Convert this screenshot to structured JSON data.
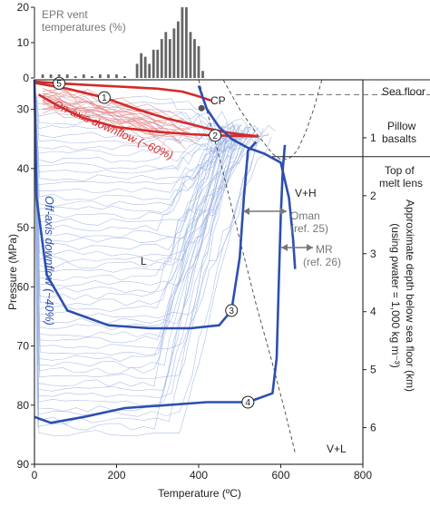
{
  "chart_data": {
    "type": "line",
    "xlabel": "Temperature (ºC)",
    "ylabel": "Pressure (MPa)",
    "right_axis_label_line1": "Approximate depth below sea floor (km)",
    "right_axis_label_line2": "(using ρwater = 1,000 kg m⁻³)",
    "xlim": [
      0,
      800
    ],
    "ylim": [
      90,
      25
    ],
    "xticks": [
      "0",
      "200",
      "400",
      "600",
      "800"
    ],
    "yticks": [
      "30",
      "40",
      "50",
      "60",
      "70",
      "80",
      "90"
    ],
    "right_ticks": [
      "1",
      "2",
      "3",
      "4",
      "5",
      "6"
    ],
    "inset": {
      "label_line1": "EPR vent",
      "label_line2": "temperatures (%)",
      "yticks": [
        "0",
        "10",
        "20"
      ],
      "ylim": [
        0,
        20
      ],
      "bins_x": [
        20,
        40,
        60,
        80,
        100,
        120,
        140,
        160,
        180,
        200,
        220,
        250,
        260,
        270,
        280,
        290,
        300,
        310,
        320,
        330,
        340,
        350,
        360,
        370,
        380,
        390,
        400,
        410
      ],
      "bins_pct": [
        1,
        1,
        1,
        1,
        0.5,
        1,
        0.5,
        1,
        1,
        1,
        0.5,
        4,
        7,
        6,
        4,
        8,
        8,
        11,
        13,
        11,
        14,
        16,
        20,
        20,
        13,
        11,
        9,
        2
      ]
    },
    "labels": {
      "sea_floor": "Sea floor",
      "pillow_line1": "Pillow",
      "pillow_line2": "basalts",
      "melt_line1": "Top of",
      "melt_line2": "melt lens",
      "cp": "CP",
      "vh": "V+H",
      "vl": "V+L",
      "l": "L",
      "oman_line1": "Oman",
      "oman_line2": "(ref. 25)",
      "mr_line1": "MR",
      "mr_line2": "(ref. 26)",
      "on_axis": "On-axis downflow (~60%)",
      "off_axis": "Off-axis downflow (~40%)"
    },
    "horizontal_lines": {
      "sea_floor_p": 25,
      "pillow_basalts_p": 27.5,
      "melt_lens_p": 38
    },
    "critical_point": {
      "x": 407,
      "y": 29.8
    },
    "highlighted_paths": [
      {
        "id": "1",
        "color": "#d42a2a",
        "x": [
          0,
          80,
          170,
          250,
          320,
          380,
          420,
          460,
          500,
          540,
          545
        ],
        "y": [
          25.5,
          26.5,
          28,
          30,
          31.5,
          32.5,
          33.2,
          33.8,
          34.2,
          34.5,
          34.6
        ]
      },
      {
        "id": "2",
        "color": "#d42a2a",
        "x": [
          10,
          60,
          120,
          200,
          300,
          380,
          440,
          500,
          545
        ],
        "y": [
          27.5,
          29.5,
          31.5,
          33,
          33.8,
          34.2,
          34.4,
          34.5,
          34.6
        ]
      },
      {
        "id": "5",
        "color": "#d42a2a",
        "x": [
          0,
          60,
          140,
          220,
          300,
          360,
          400,
          430
        ],
        "y": [
          25.3,
          25.6,
          25.9,
          26.2,
          26.5,
          27,
          27.8,
          28.5
        ]
      },
      {
        "id": "3",
        "color": "#2c4fb0",
        "x": [
          0,
          5,
          30,
          80,
          180,
          280,
          380,
          450,
          480,
          500,
          510,
          520,
          540
        ],
        "y": [
          25,
          45,
          58,
          64,
          66.5,
          67,
          67,
          66.5,
          64,
          55,
          45,
          37,
          35.5
        ]
      },
      {
        "id": "4",
        "color": "#2c4fb0",
        "x": [
          0,
          40,
          120,
          220,
          320,
          420,
          520,
          580,
          590,
          595,
          600,
          605,
          610
        ],
        "y": [
          82,
          83,
          82,
          80.5,
          80,
          79.5,
          79.5,
          78,
          72,
          60,
          48,
          40,
          36
        ]
      },
      {
        "id": "thick-blue-1",
        "color": "#2c4fb0",
        "x": [
          400,
          420,
          450,
          480,
          520,
          560,
          600,
          620,
          630,
          635
        ],
        "y": [
          26,
          30,
          33,
          35,
          36.5,
          37.5,
          39,
          45,
          52,
          57
        ]
      }
    ],
    "boundary_curves": [
      {
        "name": "dashed-dome",
        "x": [
          460,
          500,
          540,
          580,
          600,
          620,
          640,
          660,
          680,
          700
        ],
        "y": [
          25,
          30,
          34,
          37.5,
          38.5,
          38.3,
          37,
          34,
          30,
          25
        ]
      },
      {
        "name": "dashed-diagonal",
        "x": [
          400,
          450,
          500,
          540,
          580,
          610,
          635
        ],
        "y": [
          25,
          38,
          52,
          63,
          73,
          81,
          88
        ]
      }
    ]
  }
}
